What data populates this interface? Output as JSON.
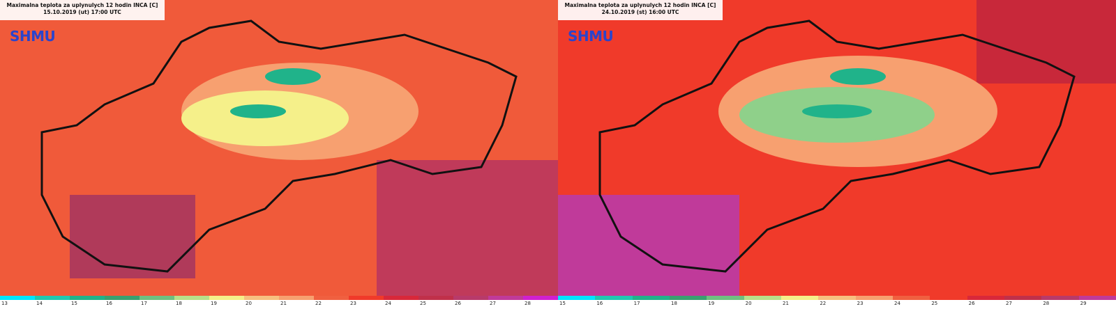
{
  "panels": [
    {
      "id": "left",
      "title_line1": "Maximalna teplota za uplynulych 12 hodin INCA [C]",
      "title_line2": "15.10.2019 (ut) 17:00 UTC",
      "logo": "SHMU",
      "legend_ticks": [
        "13",
        "14",
        "15",
        "16",
        "17",
        "18",
        "19",
        "20",
        "21",
        "22",
        "23",
        "24",
        "25",
        "26",
        "27",
        "28"
      ]
    },
    {
      "id": "right",
      "title_line1": "Maximalna teplota za uplynulych 12 hodin INCA [C]",
      "title_line2": "24.10.2019 (st) 16:00 UTC",
      "logo": "SHMU",
      "legend_ticks": [
        "15",
        "16",
        "17",
        "18",
        "19",
        "20",
        "21",
        "22",
        "23",
        "24",
        "25",
        "26",
        "27",
        "28",
        "29"
      ]
    }
  ],
  "colors": {
    "cold": "#20b38a",
    "cool": "#8fd08a",
    "mild": "#f5f08a",
    "warm": "#f7a070",
    "hot": "#f03a2a",
    "hotter": "#c8283a",
    "hottest": "#c03a9a",
    "border": "#111111"
  }
}
